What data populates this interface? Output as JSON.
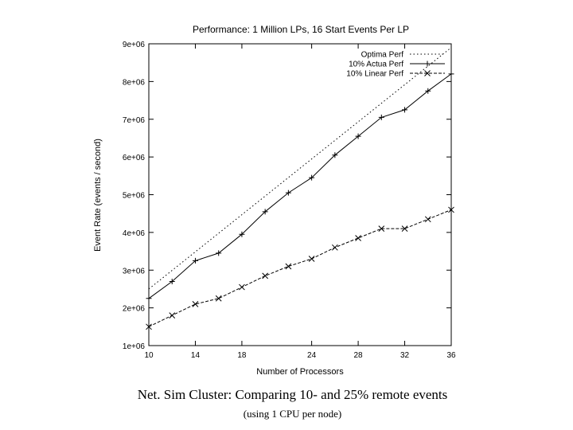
{
  "chart_data": {
    "type": "line",
    "title": "Performance:  1 Million LPs, 16 Start Events Per LP",
    "xlabel": "Number of Processors",
    "ylabel": "Event Rate (events / second)",
    "xlim": [
      10,
      36
    ],
    "ylim": [
      1000000,
      9000000
    ],
    "x_ticks": [
      10,
      14,
      18,
      24,
      28,
      32,
      36
    ],
    "x_tick_labels": [
      "10",
      "14",
      "18",
      "24",
      "28",
      "32",
      "36"
    ],
    "y_ticks": [
      1000000,
      2000000,
      3000000,
      4000000,
      5000000,
      6000000,
      7000000,
      8000000,
      9000000
    ],
    "y_tick_labels": [
      "1e+06",
      "2e+06",
      "3e+06",
      "4e+06",
      "5e+06",
      "6e+06",
      "7e+06",
      "8e+06",
      "9e+06"
    ],
    "legend_position": "top-right",
    "grid": false,
    "series": [
      {
        "name": "Optima  Perf",
        "style": "dotted",
        "color": "#000000",
        "x": [
          10,
          36
        ],
        "y": [
          2500000,
          8900000
        ]
      },
      {
        "name": "10% Actua  Perf",
        "style": "solid",
        "marker": "plus",
        "color": "#000000",
        "x": [
          10,
          12,
          14,
          16,
          18,
          20,
          22,
          24,
          26,
          28,
          30,
          32,
          34,
          36
        ],
        "y": [
          2250000,
          2700000,
          3250000,
          3450000,
          3950000,
          4550000,
          5050000,
          5450000,
          6050000,
          6550000,
          7050000,
          7250000,
          7750000,
          8200000
        ]
      },
      {
        "name": "10% Linear  Perf",
        "style": "dashed",
        "marker": "x",
        "color": "#000000",
        "x": [
          10,
          12,
          14,
          16,
          18,
          20,
          22,
          24,
          26,
          28,
          30,
          32,
          34,
          36
        ],
        "y": [
          1500000,
          1800000,
          2100000,
          2250000,
          2550000,
          2850000,
          3100000,
          3300000,
          3600000,
          3850000,
          4100000,
          4100000,
          4350000,
          4600000
        ]
      }
    ]
  },
  "caption": {
    "main": "Net. Sim Cluster:  Comparing 10- and 25% remote events",
    "sub": "(using 1 CPU per node)"
  }
}
